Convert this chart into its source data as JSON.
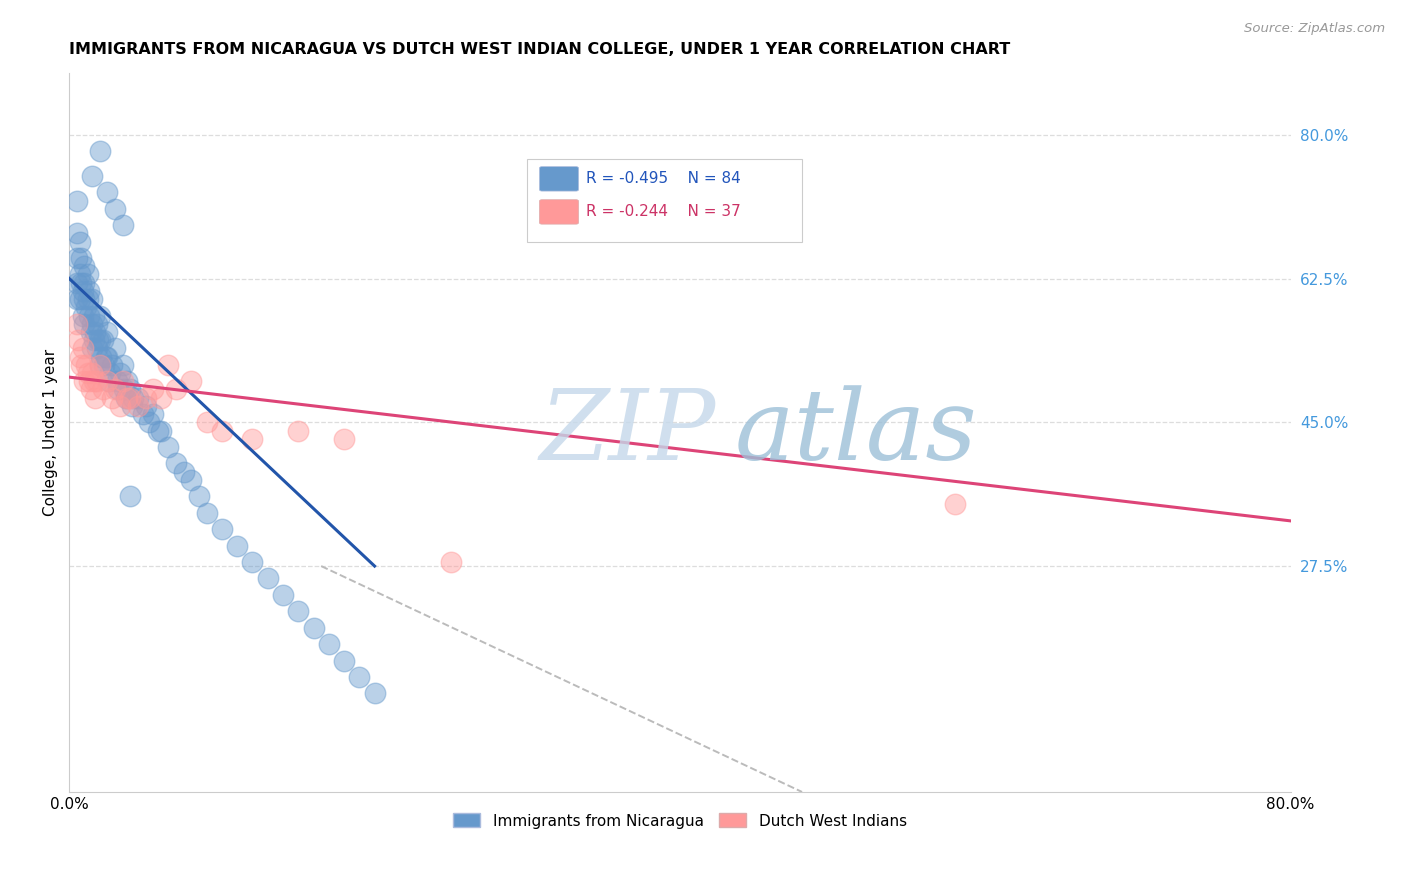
{
  "title": "IMMIGRANTS FROM NICARAGUA VS DUTCH WEST INDIAN COLLEGE, UNDER 1 YEAR CORRELATION CHART",
  "source": "Source: ZipAtlas.com",
  "ylabel": "College, Under 1 year",
  "ytick_labels": [
    "27.5%",
    "45.0%",
    "62.5%",
    "80.0%"
  ],
  "ytick_values": [
    0.275,
    0.45,
    0.625,
    0.8
  ],
  "xlim": [
    0.0,
    0.8
  ],
  "ylim": [
    0.0,
    0.875
  ],
  "legend_blue_r": "R = -0.495",
  "legend_blue_n": "N = 84",
  "legend_pink_r": "R = -0.244",
  "legend_pink_n": "N = 37",
  "legend_blue_label": "Immigrants from Nicaragua",
  "legend_pink_label": "Dutch West Indians",
  "blue_scatter_color": "#6699CC",
  "pink_scatter_color": "#FF9999",
  "blue_line_color": "#2255AA",
  "pink_line_color": "#DD4477",
  "watermark_zip": "ZIP",
  "watermark_atlas": "atlas",
  "watermark_color_zip": "#C5D8EA",
  "watermark_color_atlas": "#9DC0D8",
  "blue_x": [
    0.005,
    0.005,
    0.005,
    0.005,
    0.005,
    0.007,
    0.007,
    0.007,
    0.008,
    0.008,
    0.009,
    0.009,
    0.01,
    0.01,
    0.01,
    0.01,
    0.011,
    0.012,
    0.012,
    0.013,
    0.013,
    0.014,
    0.015,
    0.015,
    0.015,
    0.016,
    0.016,
    0.017,
    0.018,
    0.018,
    0.019,
    0.02,
    0.02,
    0.02,
    0.021,
    0.022,
    0.023,
    0.024,
    0.025,
    0.025,
    0.026,
    0.027,
    0.028,
    0.03,
    0.031,
    0.032,
    0.033,
    0.035,
    0.036,
    0.037,
    0.038,
    0.04,
    0.041,
    0.042,
    0.045,
    0.048,
    0.05,
    0.052,
    0.055,
    0.058,
    0.06,
    0.065,
    0.07,
    0.075,
    0.08,
    0.085,
    0.09,
    0.1,
    0.11,
    0.12,
    0.13,
    0.14,
    0.15,
    0.16,
    0.17,
    0.18,
    0.19,
    0.2,
    0.015,
    0.02,
    0.025,
    0.03,
    0.035,
    0.04
  ],
  "blue_y": [
    0.72,
    0.68,
    0.65,
    0.62,
    0.6,
    0.67,
    0.63,
    0.6,
    0.65,
    0.62,
    0.61,
    0.58,
    0.64,
    0.62,
    0.6,
    0.57,
    0.59,
    0.63,
    0.6,
    0.61,
    0.58,
    0.56,
    0.6,
    0.57,
    0.54,
    0.58,
    0.55,
    0.56,
    0.57,
    0.54,
    0.55,
    0.58,
    0.55,
    0.52,
    0.53,
    0.55,
    0.52,
    0.53,
    0.56,
    0.53,
    0.5,
    0.51,
    0.52,
    0.54,
    0.5,
    0.49,
    0.51,
    0.52,
    0.49,
    0.48,
    0.5,
    0.49,
    0.47,
    0.48,
    0.48,
    0.46,
    0.47,
    0.45,
    0.46,
    0.44,
    0.44,
    0.42,
    0.4,
    0.39,
    0.38,
    0.36,
    0.34,
    0.32,
    0.3,
    0.28,
    0.26,
    0.24,
    0.22,
    0.2,
    0.18,
    0.16,
    0.14,
    0.12,
    0.75,
    0.78,
    0.73,
    0.71,
    0.69,
    0.36
  ],
  "pink_x": [
    0.005,
    0.006,
    0.007,
    0.008,
    0.009,
    0.01,
    0.011,
    0.012,
    0.013,
    0.014,
    0.015,
    0.016,
    0.017,
    0.018,
    0.02,
    0.022,
    0.025,
    0.028,
    0.03,
    0.033,
    0.035,
    0.038,
    0.04,
    0.045,
    0.05,
    0.055,
    0.06,
    0.065,
    0.07,
    0.08,
    0.09,
    0.1,
    0.12,
    0.15,
    0.18,
    0.58,
    0.25
  ],
  "pink_y": [
    0.57,
    0.55,
    0.53,
    0.52,
    0.54,
    0.5,
    0.52,
    0.51,
    0.5,
    0.49,
    0.51,
    0.5,
    0.48,
    0.5,
    0.52,
    0.49,
    0.5,
    0.48,
    0.49,
    0.47,
    0.5,
    0.48,
    0.48,
    0.47,
    0.48,
    0.49,
    0.48,
    0.52,
    0.49,
    0.5,
    0.45,
    0.44,
    0.43,
    0.44,
    0.43,
    0.35,
    0.28
  ],
  "blue_line_x": [
    0.0,
    0.2
  ],
  "blue_line_y": [
    0.625,
    0.275
  ],
  "pink_line_x": [
    0.0,
    0.8
  ],
  "pink_line_y": [
    0.505,
    0.33
  ],
  "ref_line_x": [
    0.165,
    0.48
  ],
  "ref_line_y": [
    0.275,
    0.0
  ]
}
